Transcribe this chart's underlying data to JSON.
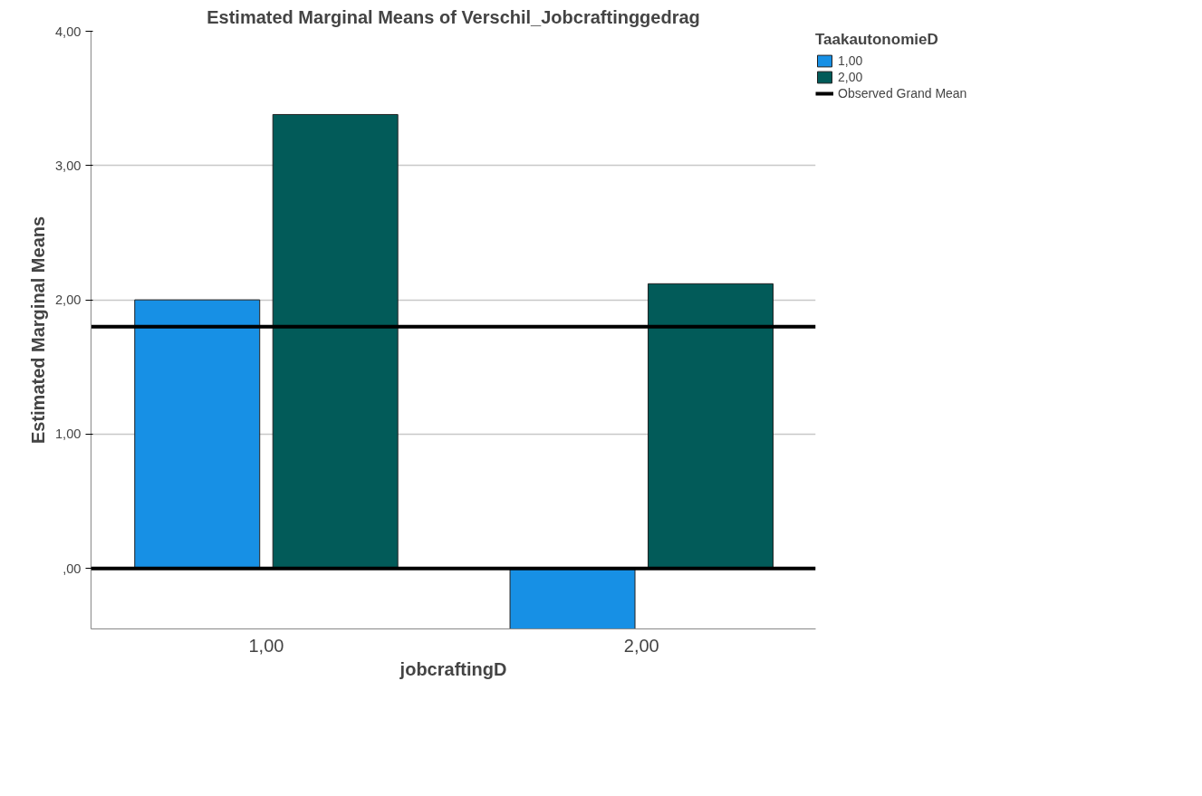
{
  "chart_data": {
    "type": "bar",
    "title": "Estimated Marginal Means of Verschil_Jobcraftinggedrag",
    "xlabel": "jobcraftingD",
    "ylabel": "Estimated Marginal Means",
    "legend_title": "TaakautonomieD",
    "categories": [
      "1,00",
      "2,00"
    ],
    "series": [
      {
        "name": "1,00",
        "color": "#1790e5",
        "values": [
          2.0,
          -0.45
        ]
      },
      {
        "name": "2,00",
        "color": "#025b59",
        "values": [
          3.38,
          2.12
        ]
      }
    ],
    "ylim": [
      -0.45,
      4
    ],
    "yticks": [
      {
        "value": 0,
        "label": ",00"
      },
      {
        "value": 1,
        "label": "1,00"
      },
      {
        "value": 2,
        "label": "2,00"
      },
      {
        "value": 3,
        "label": "3,00"
      },
      {
        "value": 4,
        "label": "4,00"
      }
    ],
    "ref_lines": [
      {
        "axis": "y",
        "value": 0,
        "label": null,
        "color": "#000000"
      },
      {
        "axis": "y",
        "value": 1.8,
        "label": "Observed Grand Mean",
        "color": "#000000"
      }
    ],
    "grid": "y",
    "legend": "top right"
  }
}
